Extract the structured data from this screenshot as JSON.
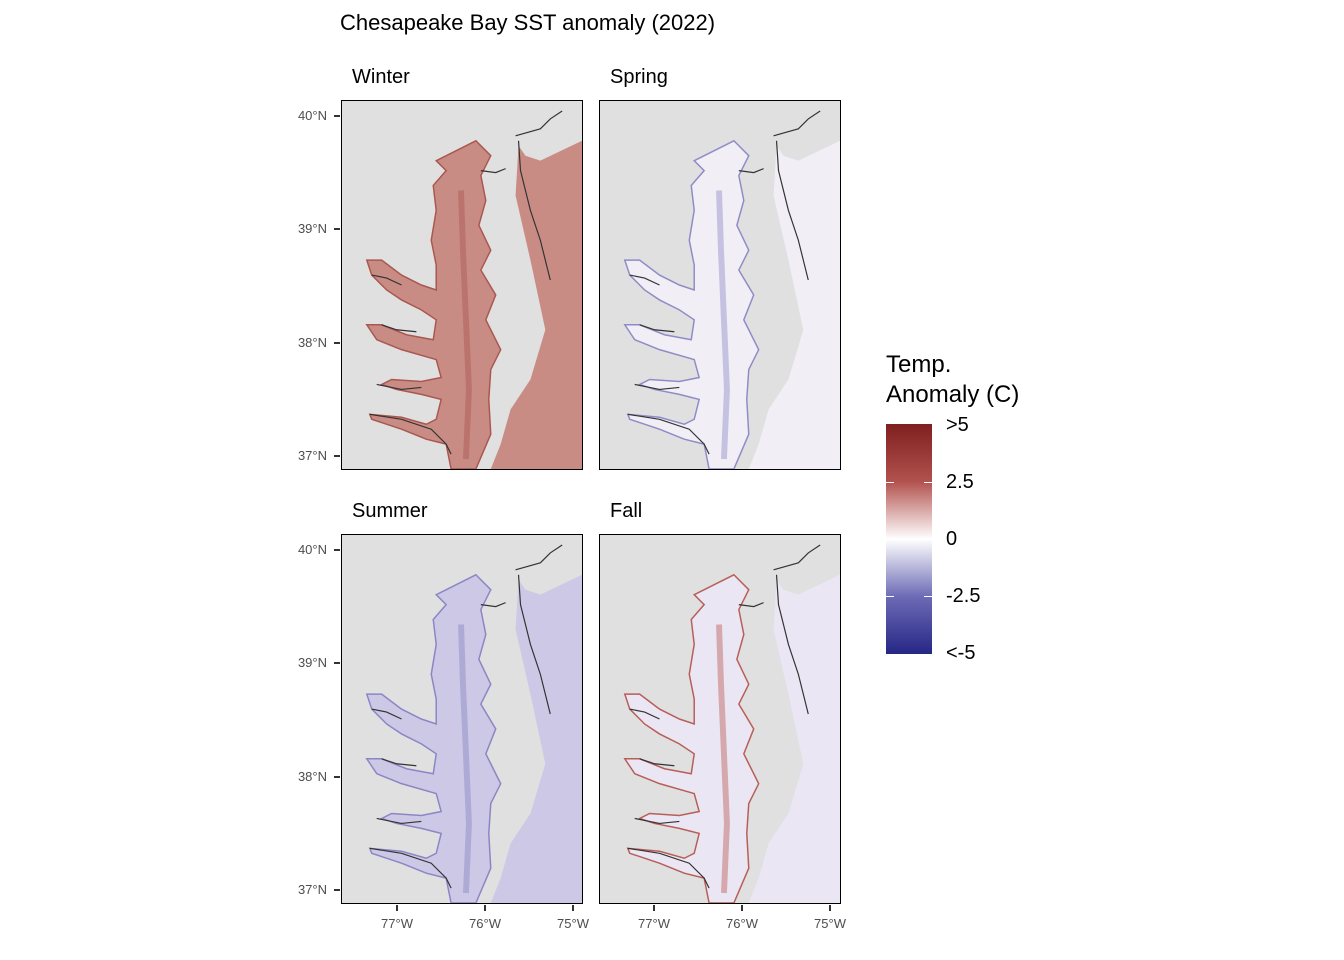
{
  "title": "Chesapeake Bay SST anomaly (2022)",
  "panels": [
    {
      "label": "Winter",
      "fill": "#c98c85",
      "deep": "#a9574f"
    },
    {
      "label": "Spring",
      "fill": "#f1eef6",
      "deep": "#8e8cc6"
    },
    {
      "label": "Summer",
      "fill": "#ccc8e6",
      "deep": "#8a86c4"
    },
    {
      "label": "Fall",
      "fill": "#ebe6f3",
      "deep": "#b75e58"
    }
  ],
  "y_axis": {
    "ticks": [
      "40°N",
      "39°N",
      "38°N",
      "37°N"
    ]
  },
  "x_axis": {
    "ticks": [
      "77°W",
      "76°W",
      "75°W"
    ]
  },
  "legend": {
    "title_line1": "Temp.",
    "title_line2": "Anomaly (C)",
    "labels": [
      ">5",
      "2.5",
      "0",
      "-2.5",
      "<-5"
    ],
    "colors": {
      "high": "#7f1f1f",
      "mid": "#ffffff",
      "low": "#262686"
    }
  },
  "colors": {
    "land": "#e0e0e0",
    "coast": "#333333"
  }
}
